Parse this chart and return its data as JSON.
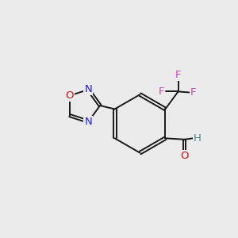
{
  "background_color": "#ebebeb",
  "bond_color": "#1a1a1a",
  "atom_colors": {
    "N": "#2020cc",
    "O_ring": "#cc1111",
    "O_aldehyde": "#cc1111",
    "F": "#cc44bb",
    "H": "#4a8888",
    "C": "#1a1a1a"
  },
  "font_size": 9.5,
  "line_width": 1.4,
  "figsize": [
    3.0,
    3.0
  ],
  "dpi": 100,
  "xlim": [
    0,
    10
  ],
  "ylim": [
    0,
    10
  ]
}
